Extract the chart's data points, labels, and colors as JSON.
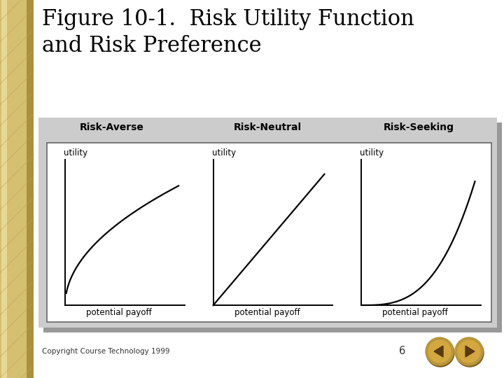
{
  "title_line1": "Figure 10-1.  Risk Utility Function",
  "title_line2": "and Risk Preference",
  "title_fontsize": 22,
  "title_color": "#000000",
  "background_color": "#ffffff",
  "left_bar_color_light": "#d4c070",
  "left_bar_color_dark": "#a89040",
  "panel_bg": "#cccccc",
  "panel_shadow": "#aaaaaa",
  "inner_box_bg": "#ffffff",
  "categories": [
    "Risk-Averse",
    "Risk-Neutral",
    "Risk-Seeking"
  ],
  "cat_fontsize": 10,
  "utility_label": "utility",
  "payoff_label": "potential payoff",
  "label_fontsize": 8.5,
  "copyright_text": "Copyright Course Technology 1999",
  "page_number": "6",
  "footer_fontsize": 7.5,
  "curve_color": "#000000",
  "axis_color": "#000000",
  "btn_color": "#b8963c",
  "btn_shadow": "#7a6020"
}
